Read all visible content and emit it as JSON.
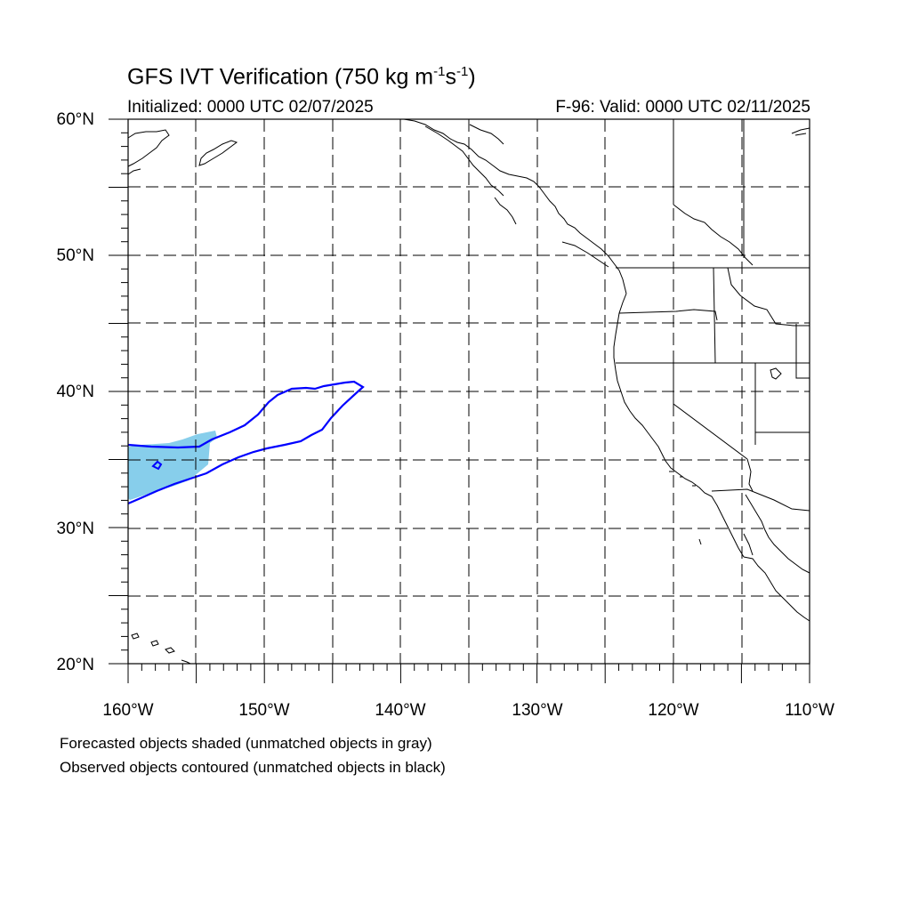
{
  "title": {
    "main": "GFS IVT Verification (750 kg m",
    "sup1": "-1",
    "mid": "s",
    "sup2": "-1",
    "end": ")"
  },
  "subtitle": {
    "initialized": "Initialized: 0000 UTC 02/07/2025",
    "valid": "F-96: Valid: 0000 UTC 02/11/2025"
  },
  "axes": {
    "lat_labels": [
      "60°N",
      "50°N",
      "40°N",
      "30°N",
      "20°N"
    ],
    "lon_labels": [
      "160°W",
      "150°W",
      "140°W",
      "130°W",
      "120°W",
      "110°W"
    ],
    "lat_range": [
      20,
      60
    ],
    "lon_range": [
      -160,
      -110
    ]
  },
  "legend": {
    "forecast": "Forecasted objects shaded (unmatched objects in gray)",
    "observed": "Observed objects contoured (unmatched objects in black)"
  },
  "colors": {
    "forecast_fill": "#87ceeb",
    "observed_contour": "#0000ff",
    "coastline": "#000000",
    "grid": "#000000"
  }
}
